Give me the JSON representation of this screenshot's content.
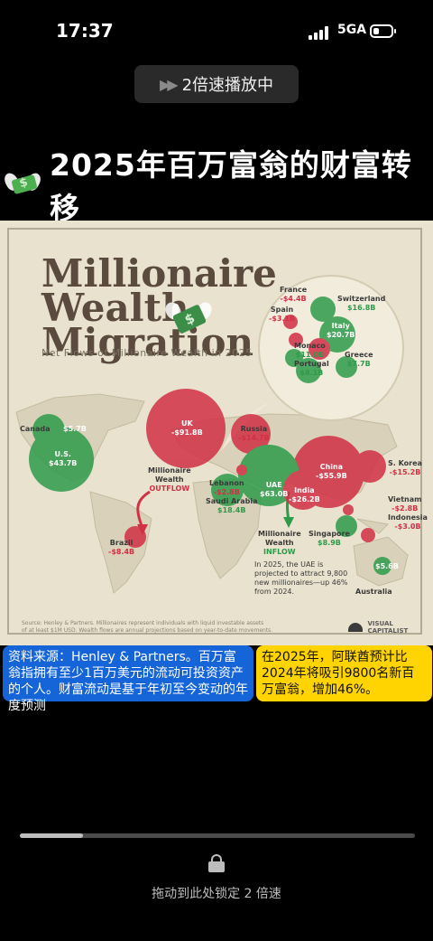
{
  "status_bar": {
    "time": "17:37",
    "network": "5GA",
    "battery_level": 0.35
  },
  "playback": {
    "speed_label": "2倍速播放中"
  },
  "headline": {
    "title": "2025年百万富翁的财富转移",
    "emoji_icon": "money-with-wings-icon"
  },
  "infographic": {
    "title_lines": [
      "Millionaire",
      "Wealth",
      "Migration"
    ],
    "subtitle": "Net Flows of Millionaire Wealth in 2025",
    "countries": {
      "canada": {
        "name": "Canada",
        "value": "$5.7B"
      },
      "us": {
        "name": "U.S.",
        "value": "$43.7B"
      },
      "uk": {
        "name": "UK",
        "value": "-$91.8B"
      },
      "russia": {
        "name": "Russia",
        "value": "-$14.7B"
      },
      "france": {
        "name": "France",
        "value": "-$4.4B"
      },
      "spain": {
        "name": "Spain",
        "value": "-$3.1B"
      },
      "switzerland": {
        "name": "Switzerland",
        "value": "$16.8B"
      },
      "italy": {
        "name": "Italy",
        "value": "$20.7B"
      },
      "monaco": {
        "name": "Monaco",
        "value": "$11.0B"
      },
      "portugal": {
        "name": "Portugal",
        "value": "$8.1B"
      },
      "greece": {
        "name": "Greece",
        "value": "$7.7B"
      },
      "lebanon": {
        "name": "Lebanon",
        "value": "-$2.8B"
      },
      "saudi": {
        "name": "Saudi Arabia",
        "value": "$18.4B"
      },
      "uae": {
        "name": "UAE",
        "value": "$63.0B"
      },
      "india": {
        "name": "India",
        "value": "-$26.2B"
      },
      "china": {
        "name": "China",
        "value": "-$55.9B"
      },
      "skorea": {
        "name": "S. Korea",
        "value": "-$15.2B"
      },
      "vietnam": {
        "name": "Vietnam",
        "value": "-$2.8B"
      },
      "indonesia": {
        "name": "Indonesia",
        "value": "-$3.0B"
      },
      "singapore": {
        "name": "Singapore",
        "value": "$8.9B"
      },
      "brazil": {
        "name": "Brazil",
        "value": "-$8.4B"
      },
      "australia": {
        "name": "Australia",
        "value": "$5.6B"
      }
    },
    "outflow_label": [
      "Millionaire",
      "Wealth",
      "OUTFLOW"
    ],
    "inflow_label": [
      "Millionaire",
      "Wealth",
      "INFLOW"
    ],
    "uae_note": [
      "In 2025, the UAE is",
      "projected to attract 9,800",
      "new millionaires—up 46%",
      "from 2024."
    ],
    "source_lines": [
      "Source: Henley & Partners. Millionaires represent individuals with liquid investable assets",
      "of at least $1M USD. Wealth flows are annual projections based on year-to-date movements."
    ],
    "brand_lines": [
      "VISUAL",
      "CAPITALIST"
    ],
    "colors": {
      "outflow": "#d13045",
      "inflow": "#2e9a4a",
      "land": "#d9d1b9",
      "water": "#e9e2ce"
    }
  },
  "captions": {
    "blue_note": "资料来源：Henley & Partners。百万富翁指拥有至少1百万美元的流动可投资资产的个人。财富流动是基于年初至今变动的年度预测",
    "yellow_note": "在2025年，阿联酋预计比2024年将吸引9800名新百万富翁，增加46%。"
  },
  "player": {
    "progress_fraction": 0.16,
    "lock_hint": "拖动到此处锁定 2 倍速"
  }
}
